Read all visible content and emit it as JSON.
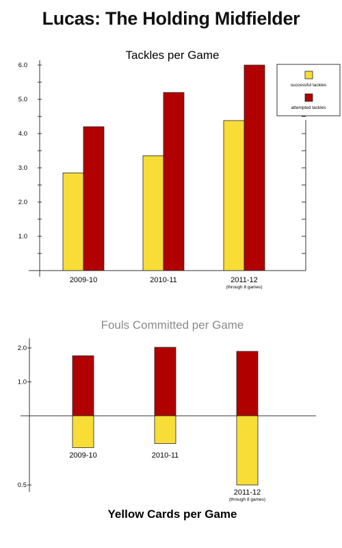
{
  "page": {
    "title": "Lucas: The Holding Midfielder"
  },
  "colors": {
    "successful": "#f7dd35",
    "attempted": "#b00000",
    "axis": "#333333"
  },
  "chart_data": [
    {
      "type": "bar",
      "title": "Tackles per Game",
      "categories": [
        "2009-10",
        "2010-11",
        "2011-12"
      ],
      "category_notes": [
        "",
        "",
        "(through 8 games)"
      ],
      "series": [
        {
          "name": "successful tackles",
          "values": [
            2.85,
            3.35,
            4.38
          ]
        },
        {
          "name": "attempted tackles",
          "values": [
            4.2,
            5.2,
            6.0
          ]
        }
      ],
      "ylim": [
        0,
        6.0
      ],
      "yticks": [
        "1.0",
        "2.0",
        "3.0",
        "4.0",
        "5.0",
        "6.0"
      ],
      "legend": "top-right"
    },
    {
      "type": "bar",
      "title": "Fouls Committed per Game",
      "subtitle": "Yellow Cards per Game",
      "categories": [
        "2009-10",
        "2010-11",
        "2011-12"
      ],
      "category_notes": [
        "",
        "",
        "(through 8 games)"
      ],
      "series": [
        {
          "name": "Fouls Committed per Game",
          "values": [
            1.77,
            2.02,
            1.9
          ]
        },
        {
          "name": "Yellow Cards per Game",
          "values": [
            0.23,
            0.2,
            0.5
          ]
        }
      ],
      "upper_ylim": [
        0,
        2.0
      ],
      "upper_yticks": [
        "1.0",
        "2.0"
      ],
      "lower_ylim": [
        0,
        0.5
      ],
      "lower_yticks": [
        "0.5"
      ]
    }
  ]
}
